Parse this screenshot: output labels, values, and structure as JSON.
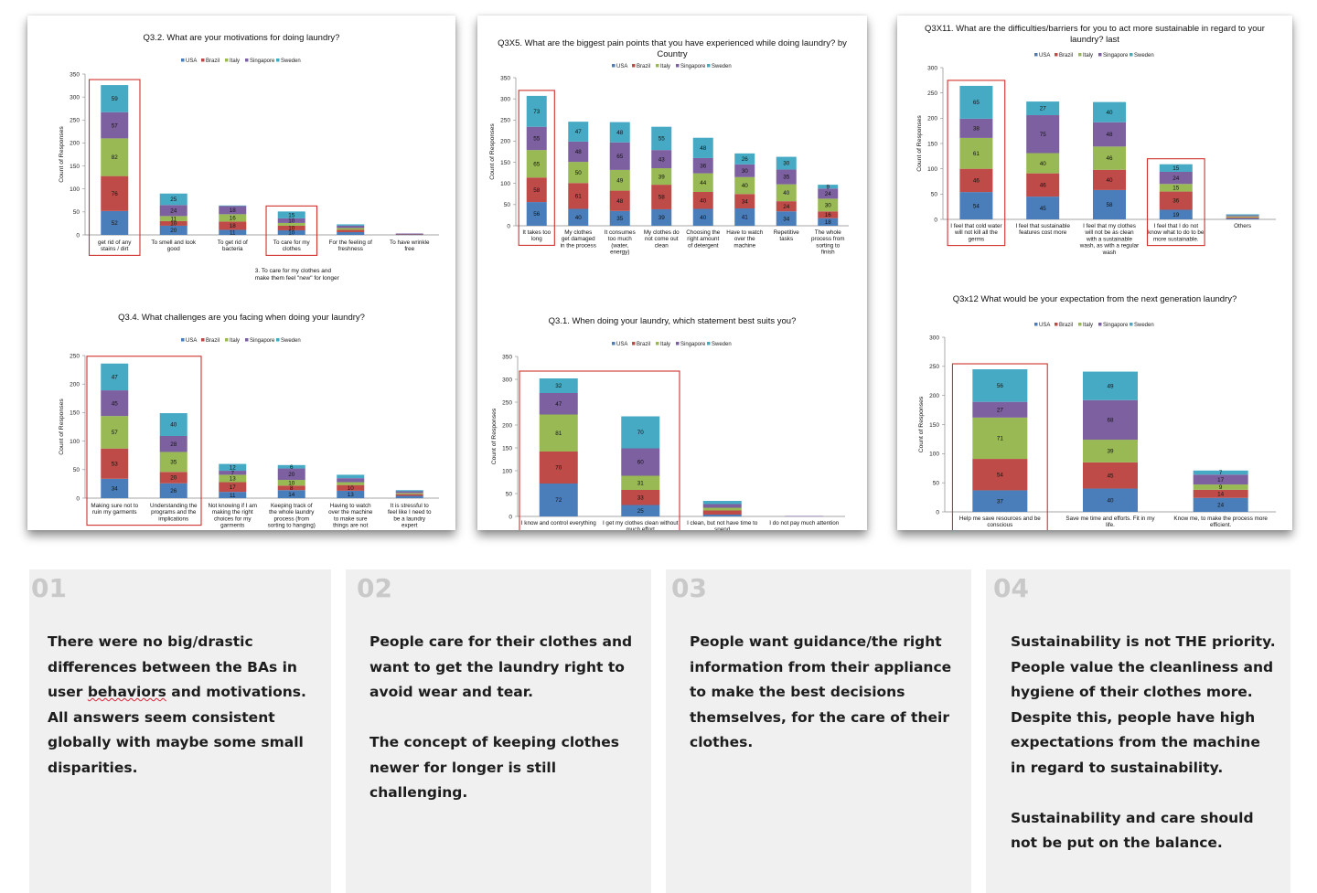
{
  "colors": {
    "USA": "#4a7ebb",
    "Brazil": "#be4b48",
    "Italy": "#98b954",
    "Singapore": "#7d60a0",
    "Sweden": "#46aac5",
    "highlight": "#d0312d",
    "grid": "#999999"
  },
  "legend": [
    "USA",
    "Brazil",
    "Italy",
    "Singapore",
    "Sweden"
  ],
  "chart_data": [
    {
      "id": "q32",
      "type": "bar",
      "stacked": true,
      "title": [
        "Q3.2. What are your motivations for doing laundry?"
      ],
      "ylabel": "Count of Responses",
      "ylim": [
        0,
        350
      ],
      "yticks": [
        0,
        50,
        100,
        150,
        200,
        250,
        300,
        350
      ],
      "categories": [
        [
          "get rid of any",
          "stains / dirt"
        ],
        [
          "To smell and look",
          "good"
        ],
        [
          "To get rid of",
          "bacteria"
        ],
        [
          "To care for my",
          "clothes"
        ],
        [
          "For the feeling of",
          "freshness"
        ],
        [
          "To have wrinkle",
          "free"
        ]
      ],
      "series": [
        {
          "name": "USA",
          "values": [
            52,
            20,
            11,
            10,
            6,
            1
          ]
        },
        {
          "name": "Brazil",
          "values": [
            76,
            10,
            18,
            10,
            5,
            1
          ]
        },
        {
          "name": "Italy",
          "values": [
            82,
            11,
            16,
            6,
            4,
            0
          ]
        },
        {
          "name": "Singapore",
          "values": [
            57,
            24,
            18,
            10,
            5,
            1
          ]
        },
        {
          "name": "Sweden",
          "values": [
            59,
            25,
            1,
            15,
            3,
            0
          ]
        }
      ],
      "labels_visible": [
        [
          52,
          76,
          82,
          57,
          59
        ],
        [
          20,
          10,
          11,
          24,
          25
        ],
        [
          11,
          18,
          16,
          18,
          null
        ],
        [
          10,
          10,
          null,
          10,
          15
        ],
        [
          null,
          null,
          null,
          null,
          null
        ],
        [
          null,
          null,
          null,
          null,
          null
        ]
      ],
      "highlight": [
        0,
        3
      ],
      "note": [
        "3. To care for my clothes and",
        "make them feel \"new\" for longer"
      ]
    },
    {
      "id": "q34",
      "type": "bar",
      "stacked": true,
      "title": [
        "Q3.4. What challenges are you facing when doing your laundry?"
      ],
      "ylabel": "Count of Responses",
      "ylim": [
        0,
        250
      ],
      "yticks": [
        0,
        50,
        100,
        150,
        200,
        250
      ],
      "categories": [
        [
          "Making sure not to",
          "ruin my garments"
        ],
        [
          "Understanding the",
          "programs and the",
          "implications"
        ],
        [
          "Not knowing if I am",
          "making the right",
          "choices for my",
          "garments"
        ],
        [
          "Keeping track of",
          "the whole laundry",
          "process (from",
          "sorting to hanging)"
        ],
        [
          "Having to watch",
          "over the machine",
          "to make sure",
          "things are not",
          "ruined"
        ],
        [
          "It is stressful to",
          "feel like I need to",
          "be a laundry",
          "expert"
        ]
      ],
      "series": [
        {
          "name": "USA",
          "values": [
            34,
            26,
            11,
            14,
            13,
            4
          ]
        },
        {
          "name": "Brazil",
          "values": [
            53,
            20,
            17,
            8,
            10,
            3
          ]
        },
        {
          "name": "Italy",
          "values": [
            57,
            35,
            13,
            10,
            5,
            2
          ]
        },
        {
          "name": "Singapore",
          "values": [
            45,
            28,
            7,
            20,
            7,
            3
          ]
        },
        {
          "name": "Sweden",
          "values": [
            47,
            40,
            12,
            6,
            6,
            2
          ]
        }
      ],
      "labels_visible": [
        [
          34,
          53,
          57,
          45,
          47
        ],
        [
          26,
          20,
          35,
          28,
          40
        ],
        [
          11,
          17,
          13,
          7,
          12
        ],
        [
          14,
          8,
          10,
          20,
          6
        ],
        [
          13,
          10,
          null,
          null,
          null
        ],
        [
          null,
          null,
          null,
          null,
          null
        ]
      ],
      "highlight_range": [
        0,
        1
      ]
    },
    {
      "id": "q3x5",
      "type": "bar",
      "stacked": true,
      "title": [
        "Q3X5. What are the biggest pain points that you have experienced while doing laundry? by",
        "Country"
      ],
      "ylabel": "Count of Responses",
      "ylim": [
        0,
        350
      ],
      "yticks": [
        0,
        50,
        100,
        150,
        200,
        250,
        300,
        350
      ],
      "categories": [
        [
          "It takes too",
          "long"
        ],
        [
          "My clothes",
          "get damaged",
          "in the process"
        ],
        [
          "It consumes",
          "too much",
          "(water,",
          "energy)"
        ],
        [
          "My clothes do",
          "not come out",
          "clean"
        ],
        [
          "Choosing the",
          "right amount",
          "of detergent"
        ],
        [
          "Have to watch",
          "over the",
          "machine"
        ],
        [
          "Repetitive",
          "tasks"
        ],
        [
          "The whole",
          "process from",
          "sorting to",
          "finish"
        ]
      ],
      "series": [
        {
          "name": "USA",
          "values": [
            56,
            40,
            35,
            39,
            40,
            41,
            34,
            18
          ]
        },
        {
          "name": "Brazil",
          "values": [
            58,
            61,
            48,
            58,
            40,
            34,
            24,
            16
          ]
        },
        {
          "name": "Italy",
          "values": [
            65,
            50,
            49,
            39,
            44,
            40,
            40,
            30
          ]
        },
        {
          "name": "Singapore",
          "values": [
            55,
            48,
            65,
            43,
            36,
            30,
            35,
            24
          ]
        },
        {
          "name": "Sweden",
          "values": [
            73,
            47,
            48,
            55,
            48,
            26,
            30,
            9
          ]
        }
      ],
      "labels_visible": [
        [
          56,
          58,
          65,
          55,
          73
        ],
        [
          40,
          61,
          50,
          48,
          47
        ],
        [
          35,
          48,
          49,
          65,
          48
        ],
        [
          39,
          58,
          39,
          43,
          55
        ],
        [
          40,
          40,
          44,
          36,
          48
        ],
        [
          41,
          34,
          40,
          30,
          26
        ],
        [
          34,
          24,
          40,
          35,
          30
        ],
        [
          18,
          16,
          30,
          24,
          9
        ]
      ],
      "highlight": [
        0
      ]
    },
    {
      "id": "q31",
      "type": "bar",
      "stacked": true,
      "title": [
        "Q3.1. When doing your laundry, which statement best suits you?"
      ],
      "ylabel": "Count of Responses",
      "ylim": [
        0,
        350
      ],
      "yticks": [
        0,
        50,
        100,
        150,
        200,
        250,
        300,
        350
      ],
      "categories": [
        [
          "I know and control everything"
        ],
        [
          "I get my clothes clean without",
          "much effort"
        ],
        [
          "I clean, but not have time to",
          "spend"
        ],
        [
          "I do not pay much attention"
        ]
      ],
      "series": [
        {
          "name": "USA",
          "values": [
            72,
            25,
            4,
            0
          ]
        },
        {
          "name": "Brazil",
          "values": [
            70,
            33,
            9,
            0
          ]
        },
        {
          "name": "Italy",
          "values": [
            81,
            31,
            6,
            0
          ]
        },
        {
          "name": "Singapore",
          "values": [
            47,
            60,
            8,
            1
          ]
        },
        {
          "name": "Sweden",
          "values": [
            32,
            70,
            7,
            0
          ]
        }
      ],
      "labels_visible": [
        [
          72,
          70,
          81,
          47,
          32
        ],
        [
          25,
          33,
          31,
          60,
          70
        ],
        [
          null,
          null,
          null,
          null,
          null
        ],
        [
          null,
          null,
          null,
          null,
          null
        ]
      ],
      "highlight_range": [
        0,
        1
      ]
    },
    {
      "id": "q3x11",
      "type": "bar",
      "stacked": true,
      "title": [
        "Q3X11. What are the difficulties/barriers for you to act more sustainable in regard to your",
        "laundry? last"
      ],
      "ylabel": "Count of Responses",
      "ylim": [
        0,
        300
      ],
      "yticks": [
        0,
        50,
        100,
        150,
        200,
        250,
        300
      ],
      "categories": [
        [
          "I feel that cold water",
          "will not kill all the",
          "germs"
        ],
        [
          "I feel that sustainable",
          "features cost more"
        ],
        [
          "I feel that my clothes",
          "will not be as clean",
          "with a sustainable",
          "wash, as with a regular",
          "wash"
        ],
        [
          "I feel that I do not",
          "know what to do to be",
          "more sustainable."
        ],
        [
          "Others"
        ]
      ],
      "series": [
        {
          "name": "USA",
          "values": [
            54,
            45,
            58,
            19,
            2
          ]
        },
        {
          "name": "Brazil",
          "values": [
            46,
            46,
            40,
            36,
            2
          ]
        },
        {
          "name": "Italy",
          "values": [
            61,
            40,
            46,
            15,
            2
          ]
        },
        {
          "name": "Singapore",
          "values": [
            38,
            75,
            48,
            24,
            2
          ]
        },
        {
          "name": "Sweden",
          "values": [
            65,
            27,
            40,
            15,
            2
          ]
        }
      ],
      "labels_visible": [
        [
          54,
          46,
          61,
          38,
          65
        ],
        [
          45,
          46,
          40,
          75,
          27
        ],
        [
          58,
          40,
          46,
          48,
          40
        ],
        [
          19,
          36,
          15,
          24,
          15
        ],
        [
          null,
          null,
          null,
          null,
          null
        ]
      ],
      "highlight": [
        0,
        3
      ]
    },
    {
      "id": "q3x12",
      "type": "bar",
      "stacked": true,
      "title": [
        "Q3x12 What would be your expectation from the next generation laundry?"
      ],
      "ylabel": "Count of Responses",
      "ylim": [
        0,
        300
      ],
      "yticks": [
        0,
        50,
        100,
        150,
        200,
        250,
        300
      ],
      "categories": [
        [
          "Help me save resources and be",
          "conscious"
        ],
        [
          "Save me time and efforts. Fit in my",
          "life."
        ],
        [
          "Know me, to make the process more",
          "efficient."
        ]
      ],
      "series": [
        {
          "name": "USA",
          "values": [
            37,
            40,
            24
          ]
        },
        {
          "name": "Brazil",
          "values": [
            54,
            45,
            14
          ]
        },
        {
          "name": "Italy",
          "values": [
            71,
            39,
            9
          ]
        },
        {
          "name": "Singapore",
          "values": [
            27,
            68,
            17
          ]
        },
        {
          "name": "Sweden",
          "values": [
            56,
            49,
            7
          ]
        }
      ],
      "labels_visible": [
        [
          37,
          54,
          71,
          27,
          56
        ],
        [
          40,
          45,
          39,
          68,
          49
        ],
        [
          24,
          14,
          9,
          17,
          7
        ]
      ],
      "highlight": [
        0
      ]
    }
  ],
  "insights": [
    {
      "num": "01",
      "text_a": "There were no big/drastic differences between the BAs in user ",
      "text_err": "behaviors",
      "text_b": " and motivations.\nAll answers seem consistent globally with maybe some small disparities."
    },
    {
      "num": "02",
      "text": "People care for their clothes and want to get the laundry right to avoid wear and tear.\n\nThe concept of keeping clothes newer for longer is still challenging."
    },
    {
      "num": "03",
      "text": "People want guidance/the right information from their appliance to make the best decisions themselves, for the care of their clothes."
    },
    {
      "num": "04",
      "text": "Sustainability is not THE priority. People value the cleanliness and hygiene of their clothes more.\nDespite this, people have high expectations from the machine in regard to sustainability.\n\nSustainability and care should not be put on the balance."
    }
  ]
}
